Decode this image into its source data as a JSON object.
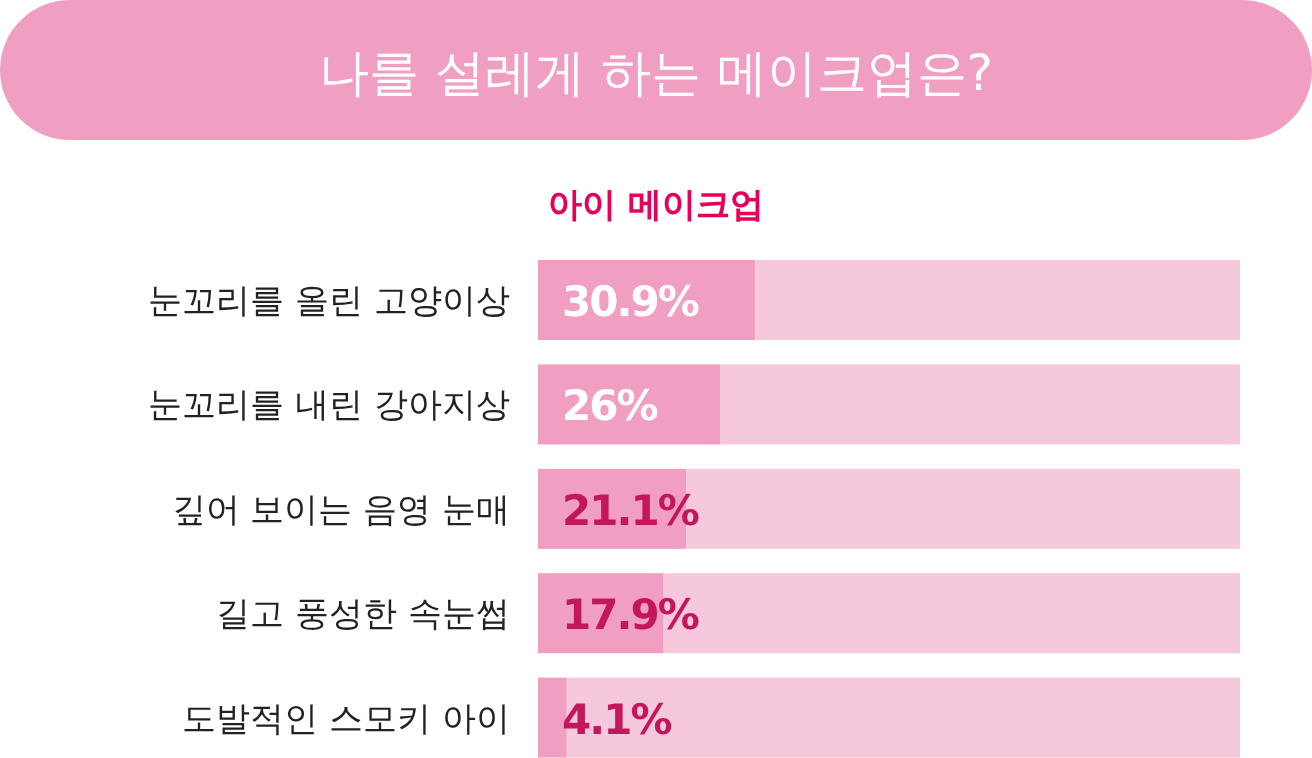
{
  "chart_data": {
    "type": "bar",
    "orientation": "horizontal",
    "stacked": true,
    "title": "나를 설레게 하는 메이크업은?",
    "subtitle": "아이 메이크업",
    "categories": [
      "눈꼬리를 올린 고양이상",
      "눈꼬리를 내린 강아지상",
      "깊어 보이는 음영 눈매",
      "길고 풍성한 속눈썹",
      "도발적인 스모키 아이"
    ],
    "series": [
      {
        "color": "#f09ec2",
        "values": [
          30.9,
          26,
          21.1,
          17.9,
          4.1
        ],
        "value_labels": [
          "30.9%",
          "26%",
          "21.1%",
          "17.9%",
          "4.1%"
        ]
      },
      {
        "color": "#f5c8dc",
        "values": [
          69.1,
          74,
          78.9,
          82.1,
          95.9
        ]
      }
    ],
    "xlim": [
      0,
      100
    ],
    "tick_labels": "y"
  }
}
